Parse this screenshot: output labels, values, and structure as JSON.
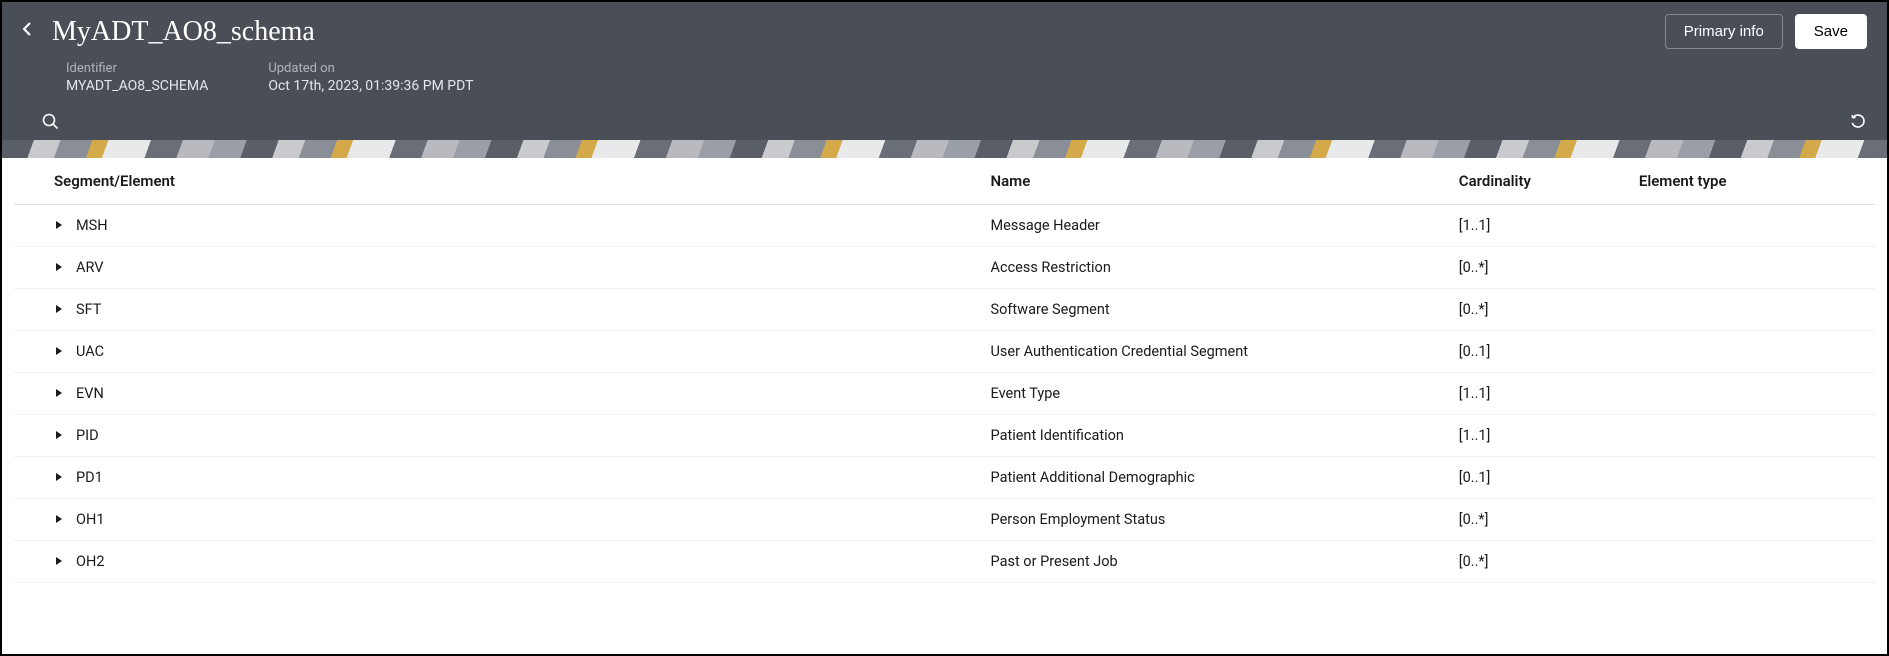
{
  "header": {
    "title": "MyADT_AO8_schema",
    "identifier_label": "Identifier",
    "identifier_value": "MYADT_AO8_SCHEMA",
    "updated_label": "Updated on",
    "updated_value": "Oct 17th, 2023, 01:39:36 PM PDT",
    "primary_info_label": "Primary info",
    "save_label": "Save"
  },
  "table": {
    "columns": {
      "segment": "Segment/Element",
      "name": "Name",
      "cardinality": "Cardinality",
      "type": "Element type"
    },
    "rows": [
      {
        "segment": "MSH",
        "name": "Message Header",
        "cardinality": "[1..1]",
        "type": ""
      },
      {
        "segment": "ARV",
        "name": "Access Restriction",
        "cardinality": "[0..*]",
        "type": ""
      },
      {
        "segment": "SFT",
        "name": "Software Segment",
        "cardinality": "[0..*]",
        "type": ""
      },
      {
        "segment": "UAC",
        "name": "User Authentication Credential Segment",
        "cardinality": "[0..1]",
        "type": ""
      },
      {
        "segment": "EVN",
        "name": "Event Type",
        "cardinality": "[1..1]",
        "type": ""
      },
      {
        "segment": "PID",
        "name": "Patient Identification",
        "cardinality": "[1..1]",
        "type": ""
      },
      {
        "segment": "PD1",
        "name": "Patient Additional Demographic",
        "cardinality": "[0..1]",
        "type": ""
      },
      {
        "segment": "OH1",
        "name": "Person Employment Status",
        "cardinality": "[0..*]",
        "type": ""
      },
      {
        "segment": "OH2",
        "name": "Past or Present Job",
        "cardinality": "[0..*]",
        "type": ""
      }
    ]
  }
}
